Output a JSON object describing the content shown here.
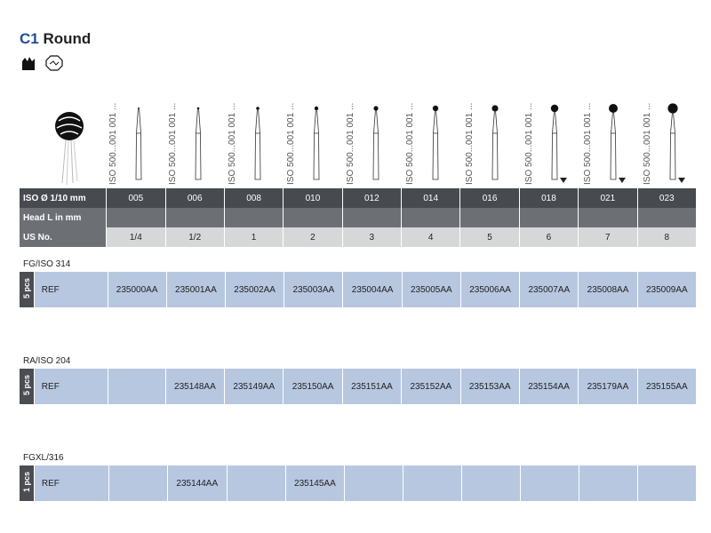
{
  "header": {
    "code": "C1",
    "name": "Round"
  },
  "iso_texts": [
    "ISO 500...001 001 ...",
    "ISO 500...001 001 ...",
    "ISO 500...001 001 ...",
    "ISO 500...001 001 ...",
    "ISO 500...001 001 ...",
    "ISO 500...001 001 ...",
    "ISO 500...001 001 ...",
    "ISO 500...001 001 ...",
    "ISO 500...001 001 ...",
    "ISO 500...001 001 ..."
  ],
  "table": {
    "iso_label": "ISO Ø 1/10 mm",
    "head_label": "Head L in mm",
    "us_label": "US No.",
    "iso": [
      "005",
      "006",
      "008",
      "010",
      "012",
      "014",
      "016",
      "018",
      "021",
      "023"
    ],
    "us": [
      "1/4",
      "1/2",
      "1",
      "2",
      "3",
      "4",
      "5",
      "6",
      "7",
      "8"
    ]
  },
  "sections": [
    {
      "label": "FG/ISO 314",
      "pcs": "5 pcs",
      "ref": "REF",
      "cells": [
        "235000AA",
        "235001AA",
        "235002AA",
        "235003AA",
        "235004AA",
        "235005AA",
        "235006AA",
        "235007AA",
        "235008AA",
        "235009AA"
      ]
    },
    {
      "label": "RA/ISO 204",
      "pcs": "5 pcs",
      "ref": "REF",
      "cells": [
        "",
        "235148AA",
        "235149AA",
        "235150AA",
        "235151AA",
        "235152AA",
        "235153AA",
        "235154AA",
        "235179AA",
        "235155AA"
      ]
    },
    {
      "label": "FGXL/316",
      "pcs": "1 pcs",
      "ref": "REF",
      "cells": [
        "",
        "235144AA",
        "",
        "235145AA",
        "",
        "",
        "",
        "",
        "",
        ""
      ]
    }
  ],
  "icons": [
    "handpiece-icon",
    "stop-icon"
  ],
  "colors": {
    "accent": "#1f4e9a",
    "row_dark": "#474a4f",
    "row_light": "#d6d7d9",
    "ref_bg": "#b7c7e0"
  }
}
